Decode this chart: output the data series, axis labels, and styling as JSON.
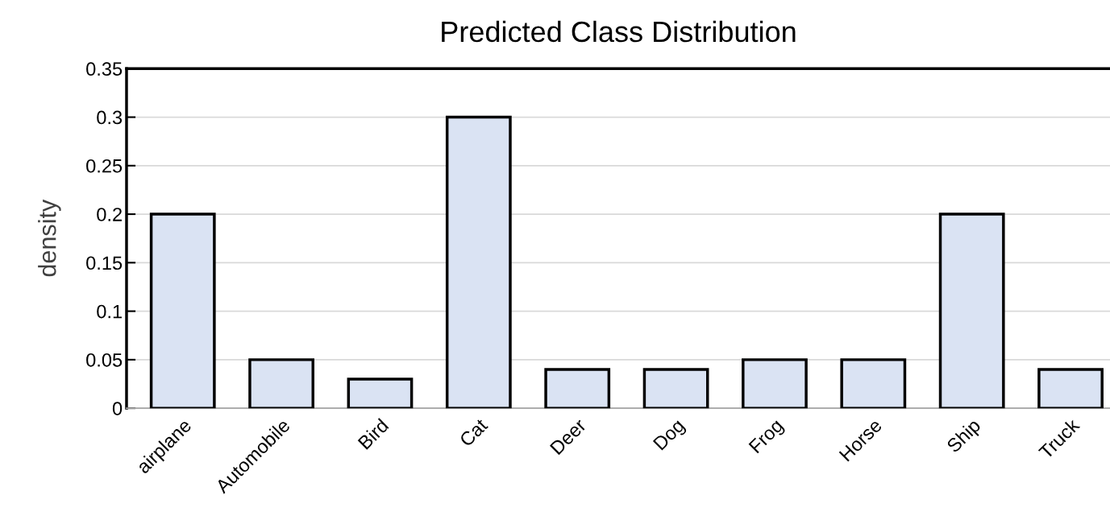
{
  "chart_data": {
    "type": "bar",
    "title": "Predicted Class Distribution",
    "ylabel": "density",
    "categories": [
      "airplane",
      "Automobile",
      "Bird",
      "Cat",
      "Deer",
      "Dog",
      "Frog",
      "Horse",
      "Ship",
      "Truck"
    ],
    "values": [
      0.2,
      0.05,
      0.03,
      0.3,
      0.04,
      0.04,
      0.05,
      0.05,
      0.2,
      0.04
    ],
    "color": "#dae3f3",
    "ylim": [
      0,
      0.35
    ],
    "yticks": [
      0,
      0.05,
      0.1,
      0.15,
      0.2,
      0.25,
      0.3,
      0.35
    ],
    "grid": "y",
    "legend": false
  }
}
